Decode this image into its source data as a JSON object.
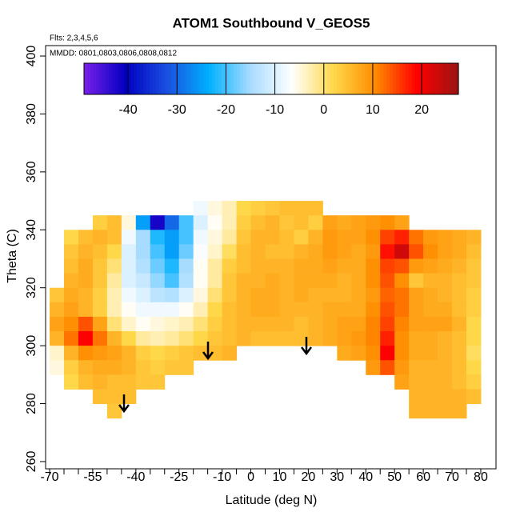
{
  "chart_data": {
    "type": "heatmap",
    "title": "ATOM1 Southbound V_GEOS5",
    "annotations": [
      "Flts: 2,3,4,5,6",
      "MMDD: 0801,0803,0806,0808,0812"
    ],
    "x_label": "Latitude (deg N)",
    "y_label": "Theta (C)",
    "xlim": [
      -71.4,
      85.3
    ],
    "ylim": [
      257.5,
      403.6
    ],
    "xticks": [
      -70,
      -55,
      -40,
      -25,
      -10,
      0,
      10,
      20,
      30,
      40,
      50,
      60,
      70,
      80
    ],
    "xminor_ticks": [
      -65,
      -60,
      -50,
      -45,
      -35,
      -30,
      -20,
      -15,
      -5,
      5,
      15,
      25,
      35,
      45,
      55,
      65,
      75
    ],
    "yticks": [
      260,
      280,
      300,
      320,
      340,
      360,
      380,
      400
    ],
    "clim": [
      -49,
      27.5
    ],
    "colorbar_ticks": [
      -40,
      -30,
      -20,
      -10,
      0,
      10,
      20
    ],
    "colors": [
      "#7a1fe8",
      "#0000c0",
      "#1a50e0",
      "#00b0ff",
      "#a8dcff",
      "#ffffff",
      "#ffd84a",
      "#ff8c00",
      "#ff0000",
      "#9a1414"
    ],
    "x": [
      -67.5,
      -62.5,
      -57.5,
      -52.5,
      -47.5,
      -42.5,
      -37.5,
      -32.5,
      -27.5,
      -22.5,
      -17.5,
      -12.5,
      -7.5,
      -2.5,
      2.5,
      7.5,
      12.5,
      17.5,
      22.5,
      27.5,
      32.5,
      37.5,
      42.5,
      47.5,
      52.5,
      57.5,
      62.5,
      67.5,
      72.5,
      77.5
    ],
    "y": [
      347.5,
      342.5,
      337.5,
      332.5,
      327.5,
      322.5,
      317.5,
      312.5,
      307.5,
      302.5,
      297.5,
      292.5,
      287.5,
      282.5,
      277.5
    ],
    "values": [
      [
        null,
        null,
        null,
        null,
        null,
        null,
        null,
        null,
        null,
        null,
        -8,
        -5,
        -3,
        2,
        3,
        4,
        5,
        5,
        5,
        null,
        null,
        null,
        null,
        null,
        null,
        null,
        null,
        null,
        null,
        null
      ],
      [
        null,
        null,
        null,
        3,
        5,
        -5,
        -25,
        -42,
        -30,
        -20,
        -10,
        -6,
        -3,
        3,
        5,
        6,
        4,
        5,
        3,
        8,
        7,
        8,
        9,
        10,
        8,
        null,
        null,
        null,
        null,
        null
      ],
      [
        null,
        2,
        5,
        6,
        5,
        -8,
        -15,
        -22,
        -25,
        -20,
        -8,
        -5,
        -2,
        4,
        6,
        6,
        5,
        3,
        6,
        9,
        8,
        8,
        10,
        15,
        17,
        12,
        9,
        8,
        7,
        6
      ],
      [
        null,
        4,
        6,
        5,
        2,
        -10,
        -15,
        -20,
        -25,
        -18,
        -7,
        -4,
        1,
        5,
        6,
        5,
        5,
        6,
        7,
        9,
        8,
        7,
        9,
        18,
        23,
        14,
        10,
        8,
        7,
        5
      ],
      [
        null,
        5,
        7,
        4,
        0,
        -10,
        -14,
        -18,
        -22,
        -15,
        -6,
        -2,
        3,
        5,
        6,
        6,
        6,
        7,
        7,
        8,
        7,
        7,
        10,
        15,
        14,
        9,
        8,
        7,
        6,
        4
      ],
      [
        null,
        6,
        7,
        4,
        -2,
        -10,
        -12,
        -16,
        -20,
        -14,
        -6,
        -2,
        4,
        6,
        6,
        7,
        6,
        7,
        7,
        7,
        6,
        7,
        10,
        14,
        10,
        4,
        6,
        6,
        5,
        4
      ],
      [
        4,
        7,
        6,
        3,
        -3,
        -8,
        -10,
        -13,
        -14,
        -10,
        -5,
        0,
        4,
        6,
        7,
        7,
        6,
        7,
        6,
        6,
        6,
        7,
        9,
        13,
        12,
        8,
        7,
        6,
        5,
        3
      ],
      [
        6,
        8,
        6,
        3,
        -3,
        -6,
        -8,
        -8,
        -8,
        -6,
        -3,
        2,
        5,
        6,
        7,
        7,
        6,
        6,
        6,
        7,
        7,
        7,
        10,
        14,
        12,
        8,
        7,
        7,
        5,
        3
      ],
      [
        8,
        10,
        14,
        8,
        0,
        -4,
        -6,
        -5,
        -4,
        -3,
        0,
        3,
        5,
        6,
        6,
        6,
        6,
        5,
        6,
        7,
        8,
        8,
        11,
        15,
        11,
        8,
        8,
        8,
        6,
        2
      ],
      [
        6,
        12,
        19,
        12,
        6,
        2,
        -2,
        -3,
        -2,
        0,
        2,
        4,
        5,
        6,
        5,
        5,
        5,
        5,
        6,
        7,
        8,
        9,
        11,
        17,
        10,
        7,
        7,
        6,
        5,
        2
      ],
      [
        -4,
        6,
        10,
        9,
        8,
        6,
        3,
        2,
        3,
        4,
        5,
        5,
        6,
        null,
        null,
        null,
        null,
        null,
        null,
        null,
        7,
        8,
        10,
        19,
        10,
        7,
        7,
        6,
        5,
        1
      ],
      [
        -5,
        3,
        6,
        7,
        7,
        6,
        4,
        3,
        4,
        4,
        null,
        null,
        null,
        null,
        null,
        null,
        null,
        null,
        null,
        null,
        null,
        null,
        9,
        14,
        9,
        6,
        6,
        6,
        5,
        2
      ],
      [
        null,
        2,
        5,
        6,
        5,
        5,
        4,
        4,
        null,
        null,
        null,
        null,
        null,
        null,
        null,
        null,
        null,
        null,
        null,
        null,
        null,
        null,
        null,
        null,
        8,
        6,
        6,
        6,
        5,
        3
      ],
      [
        null,
        null,
        null,
        5,
        5,
        5,
        null,
        null,
        null,
        null,
        null,
        null,
        null,
        null,
        null,
        null,
        null,
        null,
        null,
        null,
        null,
        null,
        null,
        null,
        null,
        6,
        6,
        6,
        6,
        5
      ],
      [
        null,
        null,
        null,
        null,
        4,
        null,
        null,
        null,
        null,
        null,
        null,
        null,
        null,
        null,
        null,
        null,
        null,
        null,
        null,
        null,
        null,
        null,
        null,
        null,
        null,
        6,
        6,
        6,
        6,
        null
      ]
    ]
  }
}
